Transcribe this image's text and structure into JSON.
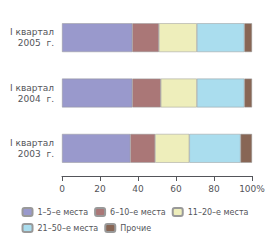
{
  "chart_data": {
    "type": "bar",
    "orientation": "horizontal",
    "stacked": true,
    "categories": [
      "I квартал\n2005  г.",
      "I квартал\n2004  г.",
      "I квартал\n2003  г."
    ],
    "series": [
      {
        "name": "1–5–е места",
        "values": [
          37,
          37,
          36
        ],
        "color": "#9999cc"
      },
      {
        "name": "6–10–е места",
        "values": [
          14,
          15,
          13
        ],
        "color": "#aa7777"
      },
      {
        "name": "11–20–е места",
        "values": [
          20,
          19,
          18
        ],
        "color": "#eeeebb"
      },
      {
        "name": "21–50–е места",
        "values": [
          25,
          25,
          27
        ],
        "color": "#aaddee"
      },
      {
        "name": "Прочие",
        "values": [
          4,
          4,
          6
        ],
        "color": "#886655"
      }
    ],
    "xlim": [
      0,
      100
    ],
    "xticks": [
      0,
      20,
      40,
      60,
      80,
      {
        "value": 100,
        "label": "100%"
      }
    ],
    "grid": false,
    "legend": "bottom"
  }
}
